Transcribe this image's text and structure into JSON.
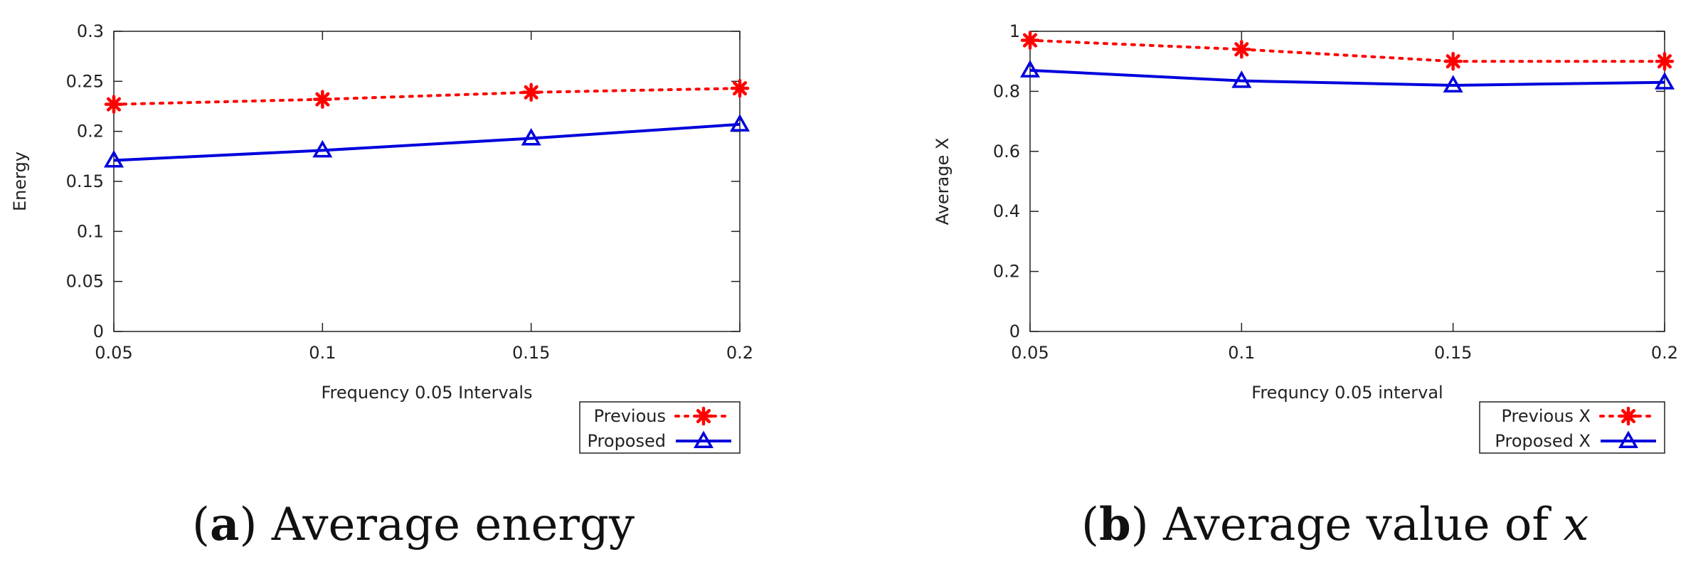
{
  "figure": {
    "captions": [
      {
        "letter": "a",
        "text": "Average energy"
      },
      {
        "letter": "b",
        "text": "Average value of ",
        "math": "x"
      }
    ]
  },
  "colors": {
    "previous": "#ff0000",
    "proposed": "#0000dd",
    "axis": "#222222"
  },
  "chart_data": [
    {
      "type": "line",
      "title": "",
      "xlabel": "Frequency 0.05 Intervals",
      "ylabel": "Energy",
      "categories": [
        "0.05",
        "0.1",
        "0.15",
        "0.2"
      ],
      "x": [
        0.05,
        0.1,
        0.15,
        0.2
      ],
      "xlim": [
        0.05,
        0.2
      ],
      "ylim": [
        0,
        0.3
      ],
      "yticks": [
        0,
        0.05,
        0.1,
        0.15,
        0.2,
        0.25,
        0.3
      ],
      "ytick_labels": [
        "0",
        "0.05",
        "0.1",
        "0.15",
        "0.2",
        "0.25",
        "0.3"
      ],
      "legend_position": "bottom-right-outside",
      "series": [
        {
          "name": "Previous",
          "style": "dotted",
          "marker": "asterisk",
          "color": "#ff0000",
          "values": [
            0.227,
            0.232,
            0.239,
            0.243
          ]
        },
        {
          "name": "Proposed",
          "style": "solid",
          "marker": "triangle",
          "color": "#0000dd",
          "values": [
            0.171,
            0.181,
            0.193,
            0.207
          ]
        }
      ]
    },
    {
      "type": "line",
      "title": "",
      "xlabel": "Frequncy 0.05 interval",
      "ylabel": "Average X",
      "categories": [
        "0.05",
        "0.1",
        "0.15",
        "0.2"
      ],
      "x": [
        0.05,
        0.1,
        0.15,
        0.2
      ],
      "xlim": [
        0.05,
        0.2
      ],
      "ylim": [
        0,
        1
      ],
      "yticks": [
        0,
        0.2,
        0.4,
        0.6,
        0.8,
        1
      ],
      "ytick_labels": [
        "0",
        "0.2",
        "0.4",
        "0.6",
        "0.8",
        "1"
      ],
      "legend_position": "bottom-right-outside",
      "series": [
        {
          "name": "Previous X",
          "style": "dotted",
          "marker": "asterisk",
          "color": "#ff0000",
          "values": [
            0.97,
            0.94,
            0.9,
            0.9
          ]
        },
        {
          "name": "Proposed X",
          "style": "solid",
          "marker": "triangle",
          "color": "#0000dd",
          "values": [
            0.87,
            0.835,
            0.82,
            0.83
          ]
        }
      ]
    }
  ]
}
